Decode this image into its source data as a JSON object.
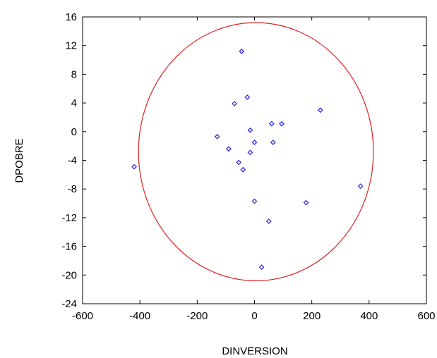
{
  "chart_data": {
    "type": "scatter",
    "xlabel": "DINVERSION",
    "ylabel": "DPOBRE",
    "xlim": [
      -600,
      600
    ],
    "ylim": [
      -24,
      16
    ],
    "xticks": [
      -600,
      -400,
      -200,
      0,
      200,
      400,
      600
    ],
    "yticks": [
      16,
      12,
      8,
      4,
      0,
      -4,
      -8,
      -12,
      -16,
      -20,
      -24
    ],
    "xtick_labels": [
      "-600",
      "-400",
      "-200",
      "0",
      "200",
      "400",
      "600"
    ],
    "ytick_labels": [
      "16",
      "12",
      "8",
      "4",
      "0",
      "-4",
      "-8",
      "-12",
      "-16",
      "-20",
      "-24"
    ],
    "grid": false,
    "colors": {
      "points": "#2020e0",
      "ellipse": "#e02020",
      "axes": "#000000"
    },
    "series": [
      {
        "marker": "diamond",
        "x": [
          -420,
          -45,
          -70,
          -25,
          230,
          -15,
          60,
          95,
          -130,
          -90,
          0,
          65,
          -15,
          -55,
          -40,
          0,
          180,
          370,
          50,
          25
        ],
        "y": [
          -4.9,
          11.2,
          3.9,
          4.8,
          3.0,
          0.2,
          1.1,
          1.1,
          -0.7,
          -2.4,
          -1.5,
          -1.5,
          -2.9,
          -4.3,
          -5.3,
          -9.7,
          -9.9,
          -7.6,
          -12.5,
          -18.9
        ]
      }
    ],
    "ellipse": {
      "cx": 5,
      "cy": -2.8,
      "rx": 410,
      "ry": 18
    }
  }
}
